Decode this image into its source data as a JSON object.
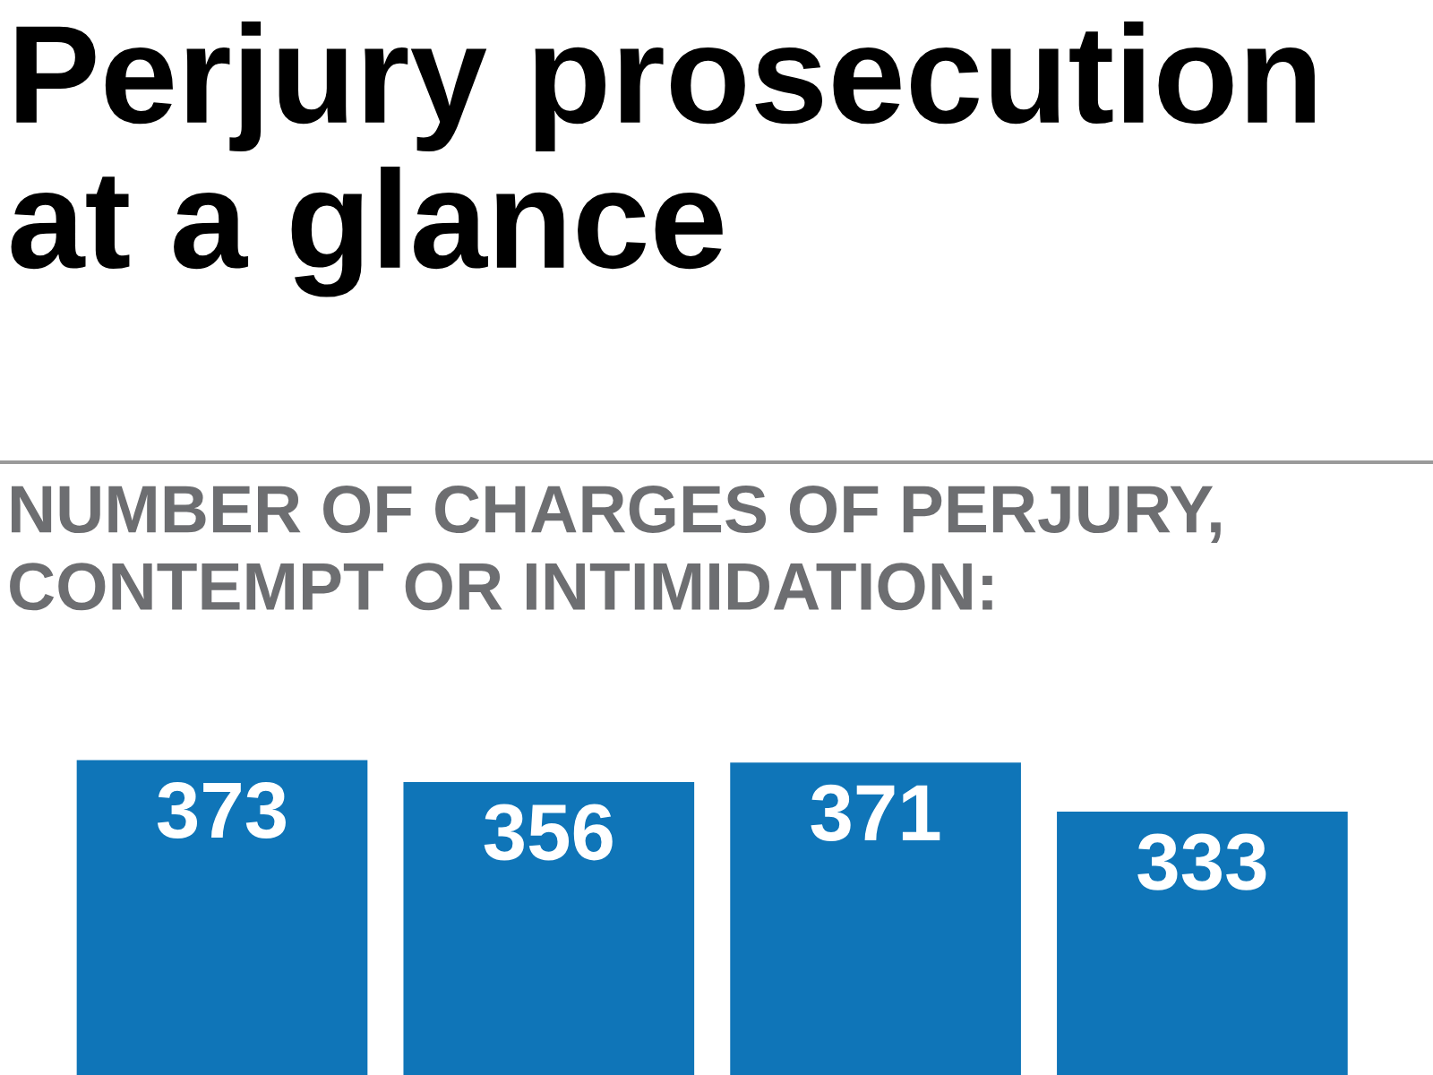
{
  "chart_data": {
    "type": "bar",
    "title": "Perjury prosecution\nat a glance",
    "subtitle": "NUMBER OF CHARGES OF PERJURY,\nCONTEMPT OR INTIMIDATION:",
    "categories": [
      null,
      null,
      null,
      null
    ],
    "values": [
      373,
      356,
      371,
      333
    ],
    "color": "#0f75b8",
    "data_labels": true,
    "grid": false,
    "legend": false
  }
}
